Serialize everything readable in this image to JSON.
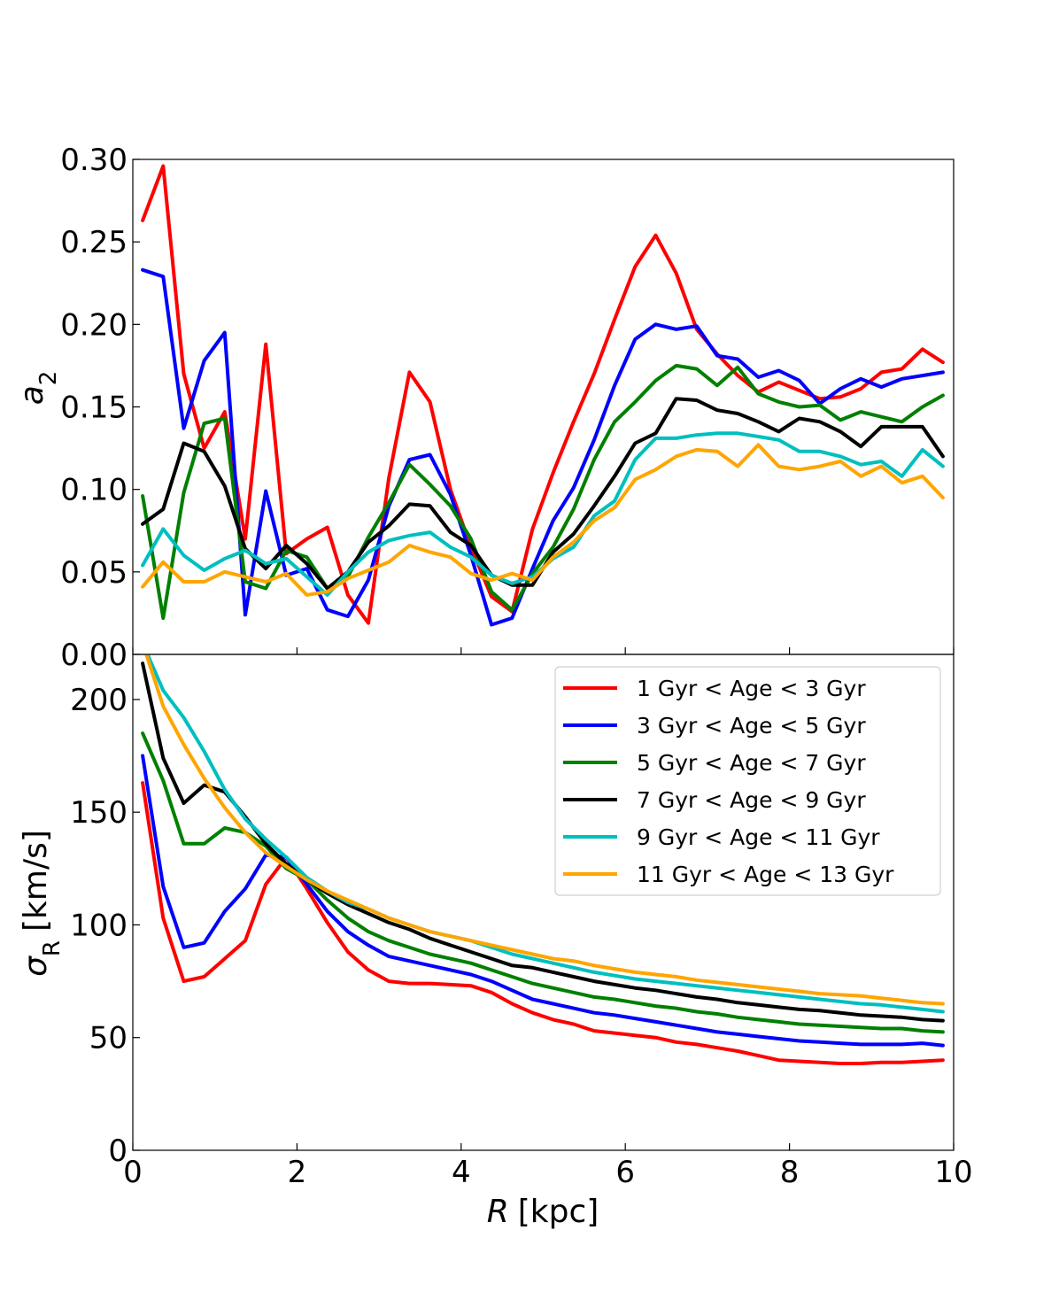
{
  "chart_data": [
    {
      "type": "line",
      "panel": "top",
      "ylabel": "a",
      "ylabel_subscript": "2",
      "xlim": [
        0,
        10
      ],
      "ylim": [
        0.0,
        0.3
      ],
      "yticks": [
        0.0,
        0.05,
        0.1,
        0.15,
        0.2,
        0.25,
        0.3
      ],
      "ytick_labels": [
        "0.00",
        "0.05",
        "0.10",
        "0.15",
        "0.20",
        "0.25",
        "0.30"
      ],
      "xticks": [
        0,
        2,
        4,
        6,
        8,
        10
      ],
      "grid": false,
      "x": [
        0.12,
        0.37,
        0.62,
        0.87,
        1.12,
        1.37,
        1.62,
        1.87,
        2.12,
        2.37,
        2.62,
        2.87,
        3.12,
        3.37,
        3.62,
        3.87,
        4.12,
        4.37,
        4.62,
        4.87,
        5.12,
        5.37,
        5.62,
        5.87,
        6.12,
        6.37,
        6.62,
        6.87,
        7.12,
        7.37,
        7.62,
        7.87,
        8.12,
        8.37,
        8.62,
        8.87,
        9.12,
        9.37,
        9.62,
        9.87
      ],
      "series": [
        {
          "name": "1 Gyr < Age < 3 Gyr",
          "color": "#ff0000",
          "values": [
            0.263,
            0.296,
            0.17,
            0.125,
            0.147,
            0.07,
            0.188,
            0.061,
            0.07,
            0.077,
            0.036,
            0.019,
            0.107,
            0.171,
            0.153,
            0.1,
            0.065,
            0.035,
            0.026,
            0.076,
            0.11,
            0.141,
            0.17,
            0.203,
            0.235,
            0.254,
            0.231,
            0.197,
            0.182,
            0.169,
            0.159,
            0.165,
            0.16,
            0.155,
            0.156,
            0.161,
            0.171,
            0.173,
            0.185,
            0.177
          ]
        },
        {
          "name": "3 Gyr < Age < 5 Gyr",
          "color": "#0000ff",
          "values": [
            0.233,
            0.229,
            0.137,
            0.178,
            0.195,
            0.024,
            0.099,
            0.048,
            0.052,
            0.027,
            0.023,
            0.045,
            0.09,
            0.118,
            0.121,
            0.097,
            0.06,
            0.018,
            0.022,
            0.052,
            0.081,
            0.101,
            0.13,
            0.163,
            0.191,
            0.2,
            0.197,
            0.199,
            0.181,
            0.179,
            0.168,
            0.172,
            0.166,
            0.152,
            0.161,
            0.167,
            0.162,
            0.167,
            0.169,
            0.171
          ]
        },
        {
          "name": "5 Gyr < Age < 7 Gyr",
          "color": "#008000",
          "values": [
            0.096,
            0.022,
            0.098,
            0.14,
            0.143,
            0.044,
            0.04,
            0.063,
            0.059,
            0.04,
            0.047,
            0.071,
            0.092,
            0.115,
            0.103,
            0.09,
            0.07,
            0.038,
            0.027,
            0.049,
            0.065,
            0.088,
            0.118,
            0.141,
            0.153,
            0.166,
            0.175,
            0.173,
            0.163,
            0.174,
            0.158,
            0.153,
            0.15,
            0.151,
            0.142,
            0.147,
            0.144,
            0.141,
            0.15,
            0.157
          ]
        },
        {
          "name": "7 Gyr < Age < 9 Gyr",
          "color": "#000000",
          "values": [
            0.079,
            0.088,
            0.128,
            0.123,
            0.102,
            0.064,
            0.052,
            0.066,
            0.055,
            0.04,
            0.05,
            0.068,
            0.078,
            0.091,
            0.09,
            0.074,
            0.066,
            0.048,
            0.042,
            0.042,
            0.062,
            0.073,
            0.09,
            0.108,
            0.128,
            0.134,
            0.155,
            0.154,
            0.148,
            0.146,
            0.141,
            0.135,
            0.143,
            0.141,
            0.135,
            0.126,
            0.138,
            0.138,
            0.138,
            0.12
          ]
        },
        {
          "name": "9 Gyr < Age < 11 Gyr",
          "color": "#00bfbf",
          "values": [
            0.054,
            0.076,
            0.06,
            0.051,
            0.058,
            0.063,
            0.055,
            0.058,
            0.047,
            0.036,
            0.05,
            0.062,
            0.069,
            0.072,
            0.074,
            0.065,
            0.059,
            0.048,
            0.043,
            0.047,
            0.058,
            0.065,
            0.084,
            0.093,
            0.118,
            0.131,
            0.131,
            0.133,
            0.134,
            0.134,
            0.132,
            0.13,
            0.123,
            0.123,
            0.12,
            0.115,
            0.117,
            0.108,
            0.124,
            0.114
          ]
        },
        {
          "name": "11 Gyr < Age < 13 Gyr",
          "color": "#ffa500",
          "values": [
            0.041,
            0.056,
            0.044,
            0.044,
            0.05,
            0.047,
            0.044,
            0.049,
            0.036,
            0.038,
            0.046,
            0.051,
            0.056,
            0.066,
            0.062,
            0.059,
            0.049,
            0.045,
            0.049,
            0.045,
            0.059,
            0.068,
            0.081,
            0.089,
            0.106,
            0.112,
            0.12,
            0.124,
            0.123,
            0.114,
            0.127,
            0.114,
            0.112,
            0.114,
            0.117,
            0.108,
            0.114,
            0.104,
            0.108,
            0.095
          ]
        }
      ]
    },
    {
      "type": "line",
      "panel": "bottom",
      "ylabel": "σ",
      "ylabel_subscript": "R",
      "ylabel_unit": "[km/s]",
      "xlabel": "R",
      "xlabel_unit": "[kpc]",
      "xlim": [
        0,
        10
      ],
      "ylim": [
        0,
        220
      ],
      "yticks": [
        0,
        50,
        100,
        150,
        200
      ],
      "ytick_labels": [
        "0",
        "50",
        "100",
        "150",
        "200"
      ],
      "xticks": [
        0,
        2,
        4,
        6,
        8,
        10
      ],
      "xtick_labels": [
        "0",
        "2",
        "4",
        "6",
        "8",
        "10"
      ],
      "grid": false,
      "legend_position": "top-right",
      "x": [
        0.12,
        0.37,
        0.62,
        0.87,
        1.12,
        1.37,
        1.62,
        1.87,
        2.12,
        2.37,
        2.62,
        2.87,
        3.12,
        3.37,
        3.62,
        3.87,
        4.12,
        4.37,
        4.62,
        4.87,
        5.12,
        5.37,
        5.62,
        5.87,
        6.12,
        6.37,
        6.62,
        6.87,
        7.12,
        7.37,
        7.62,
        7.87,
        8.12,
        8.37,
        8.62,
        8.87,
        9.12,
        9.37,
        9.62,
        9.87
      ],
      "series": [
        {
          "name": "1 Gyr < Age < 3 Gyr",
          "color": "#ff0000",
          "values": [
            163,
            103,
            75,
            77,
            85,
            93,
            118,
            130,
            116,
            101,
            88,
            80,
            75,
            74,
            74,
            73.5,
            73,
            70,
            65,
            61,
            58,
            56,
            53,
            52,
            51,
            50,
            48,
            47,
            45.5,
            44,
            42,
            40,
            39.5,
            39,
            38.5,
            38.5,
            39,
            39,
            39.5,
            40
          ]
        },
        {
          "name": "3 Gyr < Age < 5 Gyr",
          "color": "#0000ff",
          "values": [
            175,
            117,
            90,
            92,
            106,
            116,
            131,
            130,
            118,
            106,
            97,
            91,
            86,
            84,
            82,
            80,
            78,
            75,
            71,
            67,
            65,
            63,
            61,
            60,
            58.5,
            57,
            55.5,
            54,
            52.5,
            51.5,
            50.5,
            49.5,
            48.5,
            48,
            47.5,
            47,
            47,
            47,
            47.5,
            46.5
          ]
        },
        {
          "name": "5 Gyr < Age < 7 Gyr",
          "color": "#008000",
          "values": [
            185,
            164,
            136,
            136,
            143,
            141,
            135,
            125,
            120,
            111,
            103,
            97,
            93,
            90,
            87,
            85,
            83,
            80,
            77,
            74,
            72,
            70,
            68,
            67,
            65.5,
            64,
            63,
            61.5,
            60.5,
            59,
            58,
            57,
            56,
            55.5,
            55,
            54.5,
            54,
            54,
            53,
            52.5
          ]
        },
        {
          "name": "7 Gyr < Age < 9 Gyr",
          "color": "#000000",
          "values": [
            216,
            174,
            154,
            162,
            159,
            148,
            136,
            127,
            120,
            114,
            109,
            105,
            101,
            98,
            94,
            91,
            88,
            85,
            82,
            81,
            79,
            77,
            75,
            73.5,
            72,
            71,
            69.5,
            68,
            67,
            65.5,
            64.5,
            63.5,
            62.5,
            62,
            61,
            60,
            59.5,
            59,
            58,
            57.5
          ]
        },
        {
          "name": "9 Gyr < Age < 11 Gyr",
          "color": "#00bfbf",
          "values": [
            225,
            204,
            192,
            177,
            160,
            147,
            138,
            130,
            121,
            115,
            110,
            107,
            103,
            100,
            97,
            95,
            93,
            90,
            87,
            85,
            83,
            81,
            79,
            77.5,
            76,
            75,
            74,
            73,
            72,
            71,
            70,
            69,
            68,
            67,
            66,
            65,
            64.5,
            63.5,
            62.5,
            61.5
          ]
        },
        {
          "name": "11 Gyr < Age < 13 Gyr",
          "color": "#ffa500",
          "values": [
            225,
            197,
            180,
            165,
            152,
            141,
            132,
            126,
            120,
            115,
            111,
            107,
            103,
            100,
            97,
            95,
            93,
            91,
            89,
            87,
            85,
            84,
            82,
            80.5,
            79,
            78,
            77,
            75.5,
            74.5,
            73.5,
            72.5,
            71.5,
            70.5,
            69.5,
            69,
            68.5,
            67.5,
            66.5,
            65.5,
            65
          ]
        }
      ]
    }
  ]
}
